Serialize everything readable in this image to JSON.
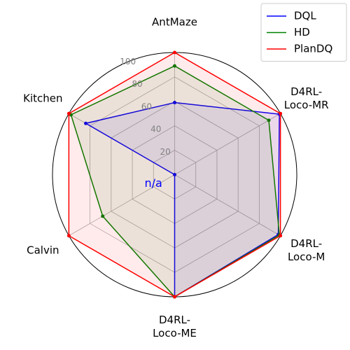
{
  "chart_data": {
    "type": "radar",
    "categories": [
      "AntMaze",
      "D4RL-\nLoco-MR",
      "D4RL-\nLoco-M",
      "D4RL-\nLoco-ME",
      "Calvin",
      "Kitchen"
    ],
    "series": [
      {
        "name": "DQL",
        "color": "#0000ff",
        "values": [
          59,
          99,
          98,
          100,
          0,
          84
        ]
      },
      {
        "name": "HD",
        "color": "#008000",
        "values": [
          89,
          89,
          99,
          100,
          68,
          98
        ]
      },
      {
        "name": "PlanDQ",
        "color": "#ff0000",
        "values": [
          100,
          100,
          100,
          100,
          100,
          100
        ]
      }
    ],
    "annotations": [
      {
        "text": "n/a",
        "series": 0,
        "category": 4
      }
    ],
    "rlim": [
      0,
      100
    ],
    "rticks": [
      20,
      40,
      60,
      80,
      100
    ],
    "grid": true,
    "legend": "upper right"
  }
}
